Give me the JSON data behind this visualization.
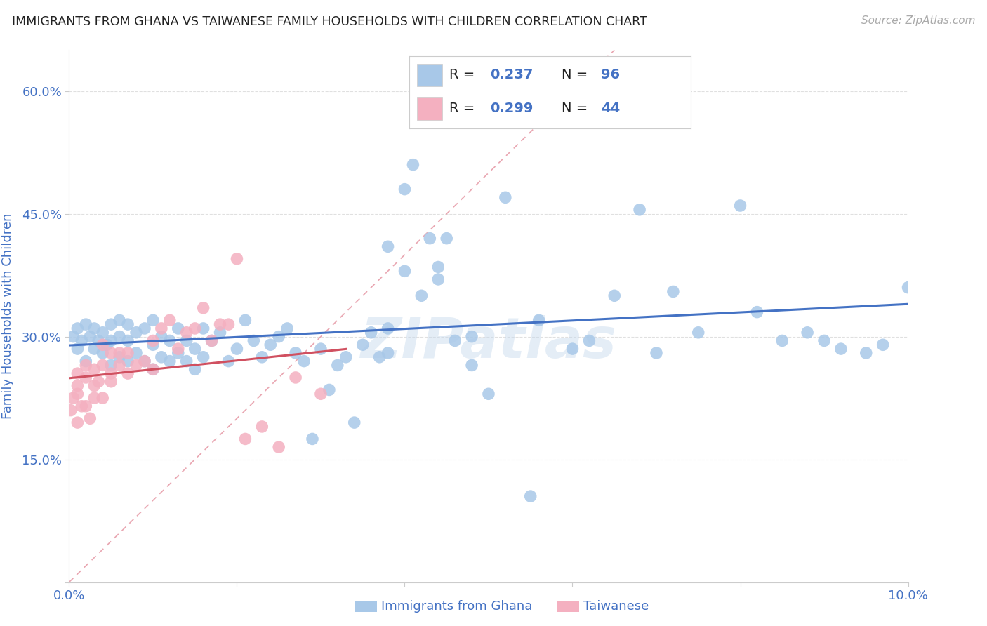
{
  "title": "IMMIGRANTS FROM GHANA VS TAIWANESE FAMILY HOUSEHOLDS WITH CHILDREN CORRELATION CHART",
  "source": "Source: ZipAtlas.com",
  "ylabel": "Family Households with Children",
  "legend_label1": "Immigrants from Ghana",
  "legend_label2": "Taiwanese",
  "r1": "0.237",
  "n1": "96",
  "r2": "0.299",
  "n2": "44",
  "color1": "#a8c8e8",
  "color2": "#f4b0c0",
  "line_color1": "#4472c4",
  "line_color2": "#d05060",
  "diag_color": "#e08090",
  "x_min": 0.0,
  "x_max": 0.1,
  "y_min": 0.0,
  "y_max": 0.65,
  "x_ticks": [
    0.0,
    0.02,
    0.04,
    0.06,
    0.08,
    0.1
  ],
  "x_tick_labels": [
    "0.0%",
    "",
    "",
    "",
    "",
    "10.0%"
  ],
  "y_ticks": [
    0.0,
    0.15,
    0.3,
    0.45,
    0.6
  ],
  "y_tick_labels": [
    "",
    "15.0%",
    "30.0%",
    "45.0%",
    "60.0%"
  ],
  "ghana_x": [
    0.0005,
    0.001,
    0.001,
    0.0015,
    0.002,
    0.002,
    0.0025,
    0.003,
    0.003,
    0.0035,
    0.004,
    0.004,
    0.0045,
    0.005,
    0.005,
    0.005,
    0.006,
    0.006,
    0.006,
    0.007,
    0.007,
    0.007,
    0.008,
    0.008,
    0.009,
    0.009,
    0.01,
    0.01,
    0.01,
    0.011,
    0.011,
    0.012,
    0.012,
    0.013,
    0.013,
    0.014,
    0.014,
    0.015,
    0.015,
    0.016,
    0.016,
    0.017,
    0.018,
    0.019,
    0.02,
    0.021,
    0.022,
    0.023,
    0.024,
    0.025,
    0.026,
    0.027,
    0.028,
    0.029,
    0.03,
    0.031,
    0.032,
    0.033,
    0.034,
    0.035,
    0.036,
    0.037,
    0.038,
    0.04,
    0.041,
    0.043,
    0.044,
    0.046,
    0.048,
    0.05,
    0.038,
    0.04,
    0.042,
    0.045,
    0.048,
    0.052,
    0.055,
    0.056,
    0.06,
    0.062,
    0.065,
    0.068,
    0.07,
    0.072,
    0.075,
    0.08,
    0.082,
    0.085,
    0.088,
    0.09,
    0.092,
    0.095,
    0.097,
    0.1,
    0.038,
    0.044
  ],
  "ghana_y": [
    0.3,
    0.285,
    0.31,
    0.295,
    0.27,
    0.315,
    0.3,
    0.285,
    0.31,
    0.295,
    0.28,
    0.305,
    0.29,
    0.265,
    0.295,
    0.315,
    0.275,
    0.3,
    0.32,
    0.27,
    0.295,
    0.315,
    0.28,
    0.305,
    0.27,
    0.31,
    0.26,
    0.29,
    0.32,
    0.275,
    0.3,
    0.27,
    0.295,
    0.28,
    0.31,
    0.27,
    0.295,
    0.26,
    0.285,
    0.275,
    0.31,
    0.295,
    0.305,
    0.27,
    0.285,
    0.32,
    0.295,
    0.275,
    0.29,
    0.3,
    0.31,
    0.28,
    0.27,
    0.175,
    0.285,
    0.235,
    0.265,
    0.275,
    0.195,
    0.29,
    0.305,
    0.275,
    0.28,
    0.38,
    0.51,
    0.42,
    0.37,
    0.295,
    0.265,
    0.23,
    0.41,
    0.48,
    0.35,
    0.42,
    0.3,
    0.47,
    0.105,
    0.32,
    0.285,
    0.295,
    0.35,
    0.455,
    0.28,
    0.355,
    0.305,
    0.46,
    0.33,
    0.295,
    0.305,
    0.295,
    0.285,
    0.28,
    0.29,
    0.36,
    0.31,
    0.385
  ],
  "taiwan_x": [
    0.0002,
    0.0005,
    0.001,
    0.001,
    0.001,
    0.001,
    0.0015,
    0.002,
    0.002,
    0.002,
    0.0025,
    0.003,
    0.003,
    0.003,
    0.0035,
    0.004,
    0.004,
    0.004,
    0.005,
    0.005,
    0.005,
    0.006,
    0.006,
    0.007,
    0.007,
    0.008,
    0.009,
    0.01,
    0.01,
    0.011,
    0.012,
    0.013,
    0.014,
    0.015,
    0.016,
    0.017,
    0.018,
    0.019,
    0.02,
    0.021,
    0.023,
    0.025,
    0.027,
    0.03
  ],
  "taiwan_y": [
    0.21,
    0.225,
    0.195,
    0.23,
    0.255,
    0.24,
    0.215,
    0.25,
    0.265,
    0.215,
    0.2,
    0.24,
    0.225,
    0.26,
    0.245,
    0.225,
    0.265,
    0.29,
    0.255,
    0.28,
    0.245,
    0.265,
    0.28,
    0.255,
    0.28,
    0.265,
    0.27,
    0.295,
    0.26,
    0.31,
    0.32,
    0.285,
    0.305,
    0.31,
    0.335,
    0.295,
    0.315,
    0.315,
    0.395,
    0.175,
    0.19,
    0.165,
    0.25,
    0.23
  ],
  "watermark": "ZIPatlas",
  "background_color": "#ffffff",
  "grid_color": "#e0e0e0",
  "tick_color": "#4472c4",
  "legend_r_color": "#4472c4",
  "legend_n_color": "#4472c4"
}
